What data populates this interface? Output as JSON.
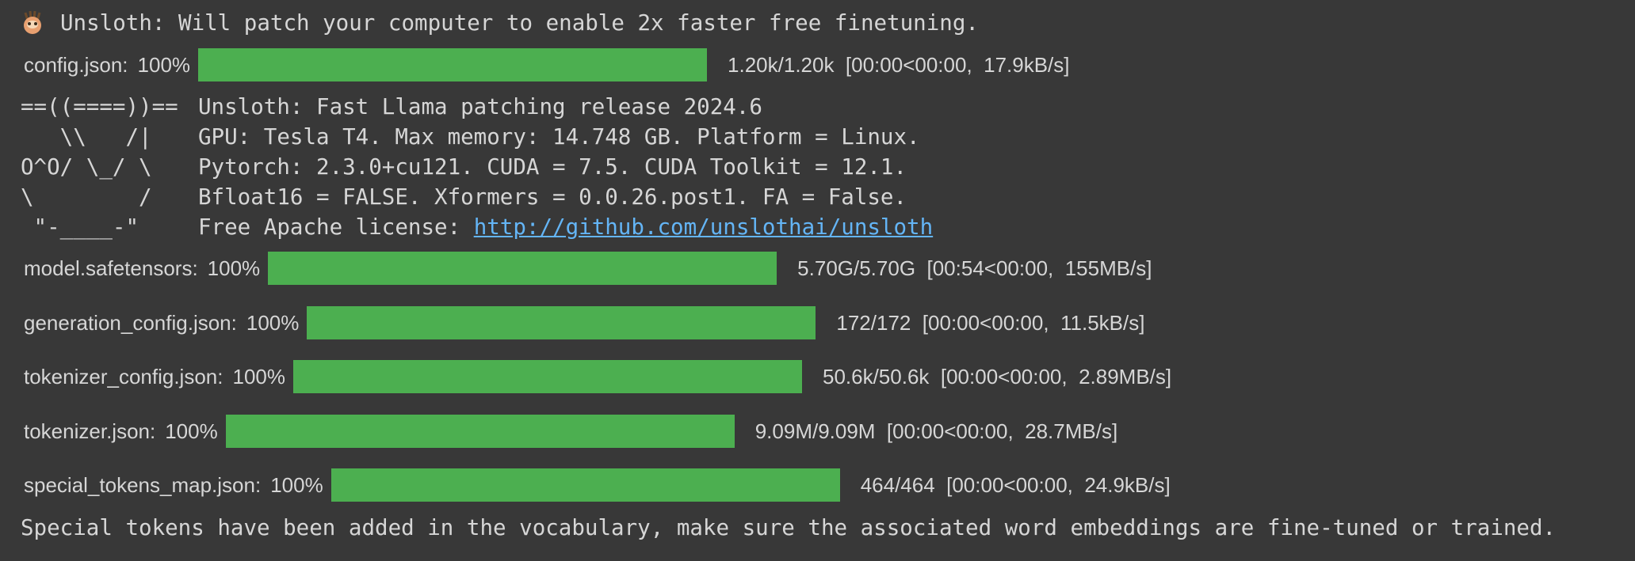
{
  "header": {
    "icon": "sloth-emoji",
    "text": "Unsloth: Will patch your computer to enable 2x faster free finetuning."
  },
  "colors": {
    "background": "#383838",
    "progress": "#4caf50",
    "link": "#64b5f6"
  },
  "downloads": [
    {
      "file": "config.json:",
      "percent_label": "100%",
      "progress": 1.0,
      "stats": "1.20k/1.20k  [00:00<00:00,  17.9kB/s]"
    },
    {
      "file": "model.safetensors:",
      "percent_label": "100%",
      "progress": 1.0,
      "stats": "5.70G/5.70G  [00:54<00:00,  155MB/s]"
    },
    {
      "file": "generation_config.json:",
      "percent_label": "100%",
      "progress": 1.0,
      "stats": "172/172  [00:00<00:00,  11.5kB/s]"
    },
    {
      "file": "tokenizer_config.json:",
      "percent_label": "100%",
      "progress": 1.0,
      "stats": "50.6k/50.6k  [00:00<00:00,  2.89MB/s]"
    },
    {
      "file": "tokenizer.json:",
      "percent_label": "100%",
      "progress": 1.0,
      "stats": "9.09M/9.09M  [00:00<00:00,  28.7MB/s]"
    },
    {
      "file": "special_tokens_map.json:",
      "percent_label": "100%",
      "progress": 1.0,
      "stats": "464/464  [00:00<00:00,  24.9kB/s]"
    }
  ],
  "banner": {
    "ascii": [
      "==((====))==",
      "   \\\\   /|",
      "O^O/ \\_/ \\",
      "\\        /",
      " \"-____-\""
    ],
    "lines": [
      "Unsloth: Fast Llama patching release 2024.6",
      "GPU: Tesla T4. Max memory: 14.748 GB. Platform = Linux.",
      "Pytorch: 2.3.0+cu121. CUDA = 7.5. CUDA Toolkit = 12.1.",
      "Bfloat16 = FALSE. Xformers = 0.0.26.post1. FA = False."
    ],
    "license_prefix": "Free Apache license: ",
    "license_link": "http://github.com/unslothai/unsloth"
  },
  "footer": "Special tokens have been added in the vocabulary, make sure the associated word embeddings are fine-tuned or trained."
}
